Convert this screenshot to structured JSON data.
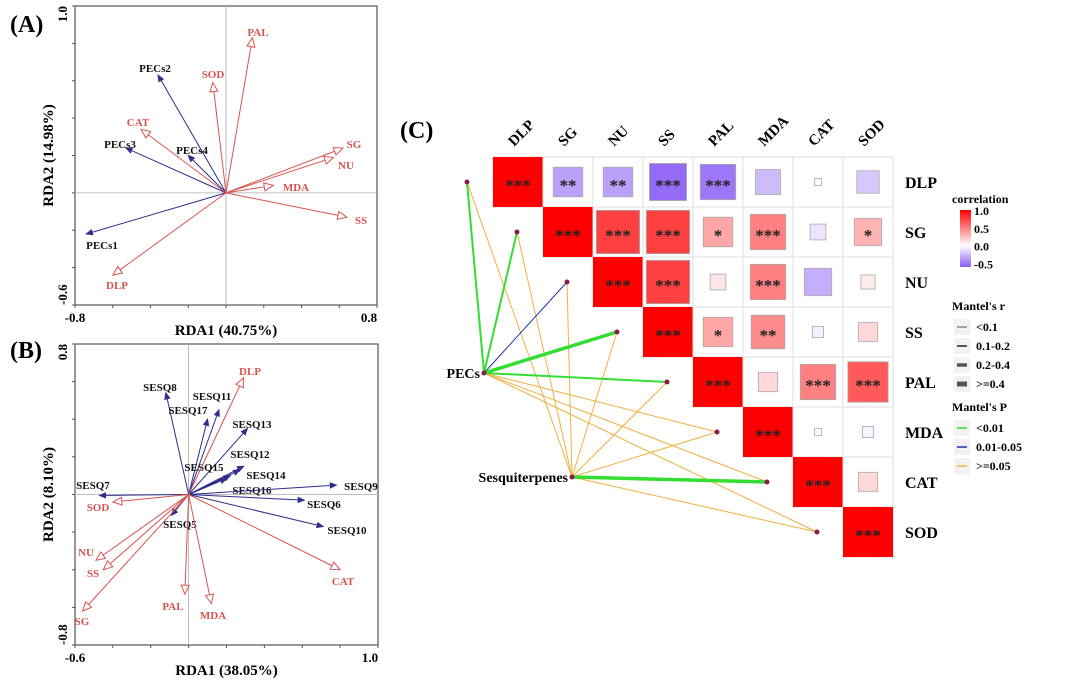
{
  "chart_data": [
    {
      "panel_label": "(A)",
      "type": "scatter",
      "subtype": "RDA biplot",
      "xlabel": "RDA1 (40.75%)",
      "ylabel": "RDA2 (14.98%)",
      "xlim": [
        -0.8,
        0.8
      ],
      "ylim": [
        -0.6,
        1.0
      ],
      "xtick_labels": [
        "-0.8",
        "0.8"
      ],
      "ytick_labels": [
        "-0.6",
        "1.0"
      ],
      "response_color": "#d9534f",
      "explanatory_color": "#2e2e8c",
      "response_vectors": [
        {
          "name": "PAL",
          "x": 0.14,
          "y": 0.83
        },
        {
          "name": "SOD",
          "x": -0.07,
          "y": 0.59
        },
        {
          "name": "CAT",
          "x": -0.45,
          "y": 0.34
        },
        {
          "name": "SG",
          "x": 0.62,
          "y": 0.24
        },
        {
          "name": "NU",
          "x": 0.57,
          "y": 0.19
        },
        {
          "name": "MDA",
          "x": 0.25,
          "y": 0.04
        },
        {
          "name": "SS",
          "x": 0.64,
          "y": -0.13
        },
        {
          "name": "DLP",
          "x": -0.6,
          "y": -0.44
        }
      ],
      "explanatory_vectors": [
        {
          "name": "PECs2",
          "x": -0.36,
          "y": 0.63
        },
        {
          "name": "PECs3",
          "x": -0.53,
          "y": 0.24
        },
        {
          "name": "PECs4",
          "x": -0.2,
          "y": 0.2
        },
        {
          "name": "PECs1",
          "x": -0.74,
          "y": -0.22
        }
      ]
    },
    {
      "panel_label": "(B)",
      "type": "scatter",
      "subtype": "RDA biplot",
      "xlabel": "RDA1 (38.05%)",
      "ylabel": "RDA2 (8.10%)",
      "xlim": [
        -0.6,
        1.0
      ],
      "ylim": [
        -0.8,
        0.8
      ],
      "xtick_labels": [
        "-0.6",
        "1.0"
      ],
      "ytick_labels": [
        "-0.8",
        "0.8"
      ],
      "response_color": "#d9534f",
      "explanatory_color": "#2e2e8c",
      "response_vectors": [
        {
          "name": "DLP",
          "x": 0.29,
          "y": 0.62
        },
        {
          "name": "SOD",
          "x": -0.4,
          "y": -0.04
        },
        {
          "name": "NU",
          "x": -0.49,
          "y": -0.35
        },
        {
          "name": "SS",
          "x": -0.45,
          "y": -0.4
        },
        {
          "name": "SG",
          "x": -0.56,
          "y": -0.62
        },
        {
          "name": "PAL",
          "x": -0.02,
          "y": -0.53
        },
        {
          "name": "MDA",
          "x": 0.12,
          "y": -0.58
        },
        {
          "name": "CAT",
          "x": 0.8,
          "y": -0.4
        }
      ],
      "explanatory_vectors": [
        {
          "name": "SESQ8",
          "x": -0.12,
          "y": 0.54
        },
        {
          "name": "SESQ11",
          "x": 0.16,
          "y": 0.45
        },
        {
          "name": "SESQ17",
          "x": 0.1,
          "y": 0.4
        },
        {
          "name": "SESQ13",
          "x": 0.31,
          "y": 0.35
        },
        {
          "name": "SESQ12",
          "x": 0.29,
          "y": 0.15
        },
        {
          "name": "SESQ15",
          "x": 0.22,
          "y": 0.1
        },
        {
          "name": "SESQ14",
          "x": 0.27,
          "y": 0.13
        },
        {
          "name": "SESQ16",
          "x": 0.2,
          "y": 0.085
        },
        {
          "name": "SESQ9",
          "x": 0.78,
          "y": 0.05
        },
        {
          "name": "SESQ6",
          "x": 0.61,
          "y": -0.03
        },
        {
          "name": "SESQ10",
          "x": 0.71,
          "y": -0.17
        },
        {
          "name": "SESQ7",
          "x": -0.47,
          "y": -0.005
        },
        {
          "name": "SESQ5",
          "x": -0.09,
          "y": -0.11
        }
      ]
    },
    {
      "panel_label": "(C)",
      "type": "heatmap",
      "subtype": "correlation matrix with Mantel test links",
      "variables": [
        "DLP",
        "SG",
        "NU",
        "SS",
        "PAL",
        "MDA",
        "CAT",
        "SOD"
      ],
      "correlation_upper": [
        [
          1.0,
          -0.35,
          -0.35,
          -0.55,
          -0.5,
          -0.25,
          0.02,
          -0.2
        ],
        [
          null,
          1.0,
          0.75,
          0.75,
          0.35,
          0.5,
          -0.1,
          0.3
        ],
        [
          null,
          null,
          1.0,
          0.75,
          0.1,
          0.5,
          -0.3,
          0.08
        ],
        [
          null,
          null,
          null,
          1.0,
          0.35,
          0.45,
          -0.05,
          0.15
        ],
        [
          null,
          null,
          null,
          null,
          1.0,
          0.15,
          0.5,
          0.65
        ],
        [
          null,
          null,
          null,
          null,
          null,
          1.0,
          0.02,
          -0.05
        ],
        [
          null,
          null,
          null,
          null,
          null,
          null,
          1.0,
          0.15
        ],
        [
          null,
          null,
          null,
          null,
          null,
          null,
          null,
          1.0
        ]
      ],
      "significance_upper": [
        [
          "***",
          "**",
          "**",
          "***",
          "***",
          "",
          "",
          ""
        ],
        [
          "",
          "***",
          "***",
          "***",
          "*",
          "***",
          "",
          "*"
        ],
        [
          "",
          "",
          "***",
          "***",
          "",
          "***",
          "",
          ""
        ],
        [
          "",
          "",
          "",
          "***",
          "*",
          "**",
          "",
          ""
        ],
        [
          "",
          "",
          "",
          "",
          "***",
          "",
          "***",
          "***"
        ],
        [
          "",
          "",
          "",
          "",
          "",
          "***",
          "",
          ""
        ],
        [
          "",
          "",
          "",
          "",
          "",
          "",
          "***",
          ""
        ],
        [
          "",
          "",
          "",
          "",
          "",
          "",
          "",
          "***"
        ]
      ],
      "colorbar": {
        "title": "correlation",
        "tick_labels": [
          "1.0",
          "0.5",
          "0.0",
          "-0.5"
        ],
        "range": [
          -0.6,
          1.0
        ],
        "high_color": "#ff0000",
        "mid_color": "#ffffff",
        "low_color": "#8a5cf6"
      },
      "mantel_groups": [
        "PECs",
        "Sesquiterpenes"
      ],
      "mantel_links": [
        {
          "from": "PECs",
          "to": "DLP",
          "r_class": "0.1-0.2",
          "p_class": "<0.01"
        },
        {
          "from": "PECs",
          "to": "SG",
          "r_class": "0.1-0.2",
          "p_class": "<0.01"
        },
        {
          "from": "PECs",
          "to": "NU",
          "r_class": "<0.1",
          "p_class": "0.01-0.05"
        },
        {
          "from": "PECs",
          "to": "SS",
          "r_class": "0.2-0.4",
          "p_class": "<0.01"
        },
        {
          "from": "PECs",
          "to": "PAL",
          "r_class": "0.1-0.2",
          "p_class": "<0.01"
        },
        {
          "from": "PECs",
          "to": "MDA",
          "r_class": "<0.1",
          "p_class": ">=0.05"
        },
        {
          "from": "PECs",
          "to": "CAT",
          "r_class": "<0.1",
          "p_class": ">=0.05"
        },
        {
          "from": "PECs",
          "to": "SOD",
          "r_class": "<0.1",
          "p_class": ">=0.05"
        },
        {
          "from": "Sesquiterpenes",
          "to": "DLP",
          "r_class": "<0.1",
          "p_class": ">=0.05"
        },
        {
          "from": "Sesquiterpenes",
          "to": "SG",
          "r_class": "<0.1",
          "p_class": ">=0.05"
        },
        {
          "from": "Sesquiterpenes",
          "to": "NU",
          "r_class": "<0.1",
          "p_class": ">=0.05"
        },
        {
          "from": "Sesquiterpenes",
          "to": "SS",
          "r_class": "<0.1",
          "p_class": ">=0.05"
        },
        {
          "from": "Sesquiterpenes",
          "to": "PAL",
          "r_class": "<0.1",
          "p_class": ">=0.05"
        },
        {
          "from": "Sesquiterpenes",
          "to": "MDA",
          "r_class": "<0.1",
          "p_class": ">=0.05"
        },
        {
          "from": "Sesquiterpenes",
          "to": "CAT",
          "r_class": "0.2-0.4",
          "p_class": "<0.01"
        },
        {
          "from": "Sesquiterpenes",
          "to": "SOD",
          "r_class": "<0.1",
          "p_class": ">=0.05"
        }
      ],
      "mantel_r_legend": {
        "title": "Mantel's r",
        "items": [
          "<0.1",
          "0.1-0.2",
          "0.2-0.4",
          ">=0.4"
        ]
      },
      "mantel_p_legend": {
        "title": "Mantel's P",
        "items": [
          {
            "label": "<0.01",
            "color": "#33dd33"
          },
          {
            "label": "0.01-0.05",
            "color": "#1f2fb0"
          },
          {
            "label": ">=0.05",
            "color": "#f0b040"
          }
        ]
      },
      "node_color": "#8b1a4a"
    }
  ]
}
